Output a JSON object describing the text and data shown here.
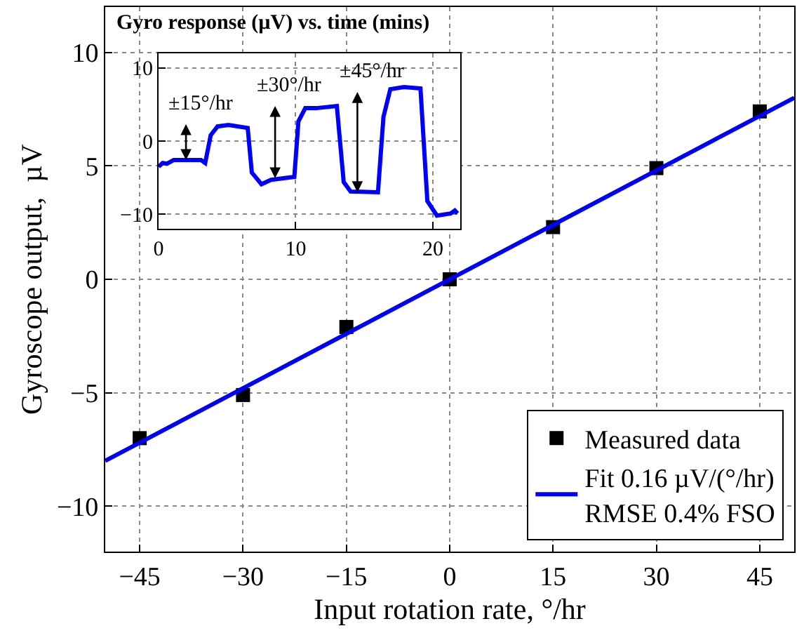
{
  "chart_data": [
    {
      "type": "scatter",
      "xlabel": "Input rotation rate, °/hr",
      "ylabel": "Gyroscope output,  µV",
      "xlim": [
        -50,
        50
      ],
      "xticks": [
        -45,
        -30,
        -15,
        0,
        15,
        30,
        45
      ],
      "ylim": [
        -12,
        12
      ],
      "yticks": [
        -10,
        -5,
        0,
        5,
        10
      ],
      "grid": true,
      "legend": "bottom right",
      "series": [
        {
          "name": "Measured data",
          "marker": "square",
          "color": "#000000",
          "x": [
            -45,
            -30,
            -15,
            0,
            15,
            30,
            45
          ],
          "values": [
            -7.0,
            -5.1,
            -2.1,
            0.0,
            2.3,
            4.9,
            7.4
          ]
        },
        {
          "name": "Fit 0.16 µV/(°/hr)\nRMSE 0.4% FSO",
          "type": "line",
          "marker": "none",
          "color": "#0000ff",
          "x": [
            -50,
            50
          ],
          "values": [
            -8,
            8
          ]
        }
      ]
    },
    {
      "type": "line",
      "title": "Gyro response (µV) vs. time (mins)",
      "xlim": [
        0,
        22
      ],
      "xticks": [
        0,
        10,
        20
      ],
      "ylim": [
        -12,
        12
      ],
      "yticks": [
        -10,
        0,
        10
      ],
      "grid": true,
      "legend": false,
      "series": [
        {
          "color": "#0000ff",
          "x": [
            0,
            0.3,
            0.6,
            1.1,
            3.1,
            3.4,
            3.8,
            4.3,
            5.1,
            6.5,
            6.8,
            7.5,
            8.2,
            9.9,
            10.2,
            10.7,
            11.5,
            13.0,
            13.5,
            14.0,
            16.0,
            16.4,
            16.9,
            17.9,
            19.1,
            19.6,
            20.3,
            21.3,
            21.6,
            21.8
          ],
          "values": [
            -3.5,
            -3.0,
            -3.1,
            -2.6,
            -2.6,
            -3.0,
            0.8,
            2.0,
            2.2,
            1.8,
            -4.3,
            -5.9,
            -5.3,
            -4.9,
            2.7,
            4.5,
            4.5,
            4.8,
            -5.6,
            -6.9,
            -7.0,
            3.3,
            7.1,
            7.4,
            7.2,
            -8.2,
            -10.2,
            -9.9,
            -9.5,
            -9.9
          ]
        }
      ],
      "annotations": [
        {
          "text": "±15°/hr",
          "x": 2.0,
          "y": -2.6
        },
        {
          "text": "±30°/hr",
          "x": 8.5,
          "y": -5.1
        },
        {
          "text": "±45°/hr",
          "x": 14.5,
          "y": -7.0
        }
      ]
    }
  ]
}
